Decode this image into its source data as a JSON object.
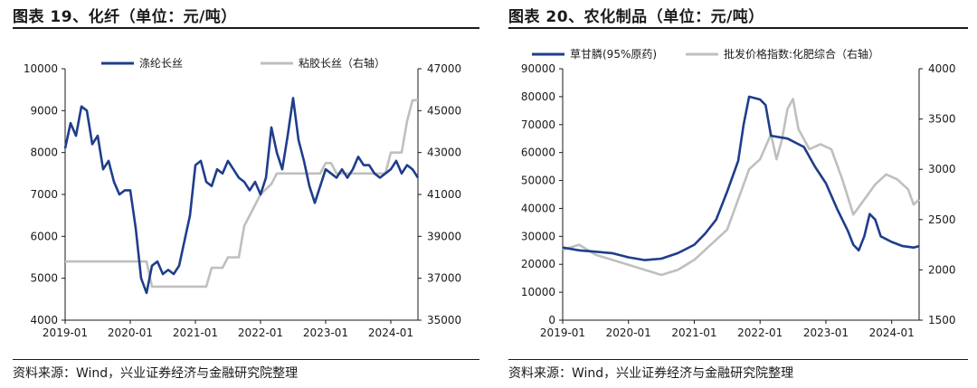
{
  "charts": {
    "left": {
      "figure_title": "图表 19、化纤（单位：元/吨）",
      "source": "资料来源：Wind，兴业证券经济与金融研究院整理"
    },
    "right": {
      "figure_title": "图表 20、农化制品（单位：元/吨）",
      "source": "资料来源：Wind，兴业证券经济与金融研究院整理"
    }
  },
  "chart_data": [
    {
      "type": "line",
      "title": "图表 19、化纤（单位：元/吨）",
      "x_ticks": [
        "2019-01",
        "2020-01",
        "2021-01",
        "2022-01",
        "2023-01",
        "2024-01"
      ],
      "x_range": [
        "2019-01",
        "2024-06"
      ],
      "y_left": {
        "range": [
          4000,
          10000
        ],
        "ticks": [
          4000,
          5000,
          6000,
          7000,
          8000,
          9000,
          10000
        ]
      },
      "y_right": {
        "range": [
          35000,
          47000
        ],
        "ticks": [
          35000,
          37000,
          39000,
          41000,
          43000,
          45000,
          47000
        ]
      },
      "legend_position": "top",
      "grid": false,
      "series": [
        {
          "name": "涤纶长丝",
          "axis": "left",
          "color": "#1f3d8c",
          "points": [
            [
              "2019-01",
              8100
            ],
            [
              "2019-02",
              8700
            ],
            [
              "2019-03",
              8400
            ],
            [
              "2019-04",
              9100
            ],
            [
              "2019-05",
              9000
            ],
            [
              "2019-06",
              8200
            ],
            [
              "2019-07",
              8400
            ],
            [
              "2019-08",
              7600
            ],
            [
              "2019-09",
              7800
            ],
            [
              "2019-10",
              7300
            ],
            [
              "2019-11",
              7000
            ],
            [
              "2019-12",
              7100
            ],
            [
              "2020-01",
              7100
            ],
            [
              "2020-02",
              6200
            ],
            [
              "2020-03",
              5000
            ],
            [
              "2020-04",
              4650
            ],
            [
              "2020-05",
              5300
            ],
            [
              "2020-06",
              5400
            ],
            [
              "2020-07",
              5100
            ],
            [
              "2020-08",
              5200
            ],
            [
              "2020-09",
              5100
            ],
            [
              "2020-10",
              5300
            ],
            [
              "2020-11",
              5900
            ],
            [
              "2020-12",
              6500
            ],
            [
              "2021-01",
              7700
            ],
            [
              "2021-02",
              7800
            ],
            [
              "2021-03",
              7300
            ],
            [
              "2021-04",
              7200
            ],
            [
              "2021-05",
              7600
            ],
            [
              "2021-06",
              7500
            ],
            [
              "2021-07",
              7800
            ],
            [
              "2021-08",
              7600
            ],
            [
              "2021-09",
              7400
            ],
            [
              "2021-10",
              7300
            ],
            [
              "2021-11",
              7100
            ],
            [
              "2021-12",
              7300
            ],
            [
              "2022-01",
              7000
            ],
            [
              "2022-02",
              7400
            ],
            [
              "2022-03",
              8600
            ],
            [
              "2022-04",
              8000
            ],
            [
              "2022-05",
              7600
            ],
            [
              "2022-06",
              8400
            ],
            [
              "2022-07",
              9300
            ],
            [
              "2022-08",
              8300
            ],
            [
              "2022-09",
              7800
            ],
            [
              "2022-10",
              7200
            ],
            [
              "2022-11",
              6800
            ],
            [
              "2022-12",
              7200
            ],
            [
              "2023-01",
              7600
            ],
            [
              "2023-02",
              7500
            ],
            [
              "2023-03",
              7400
            ],
            [
              "2023-04",
              7600
            ],
            [
              "2023-05",
              7400
            ],
            [
              "2023-06",
              7600
            ],
            [
              "2023-07",
              7900
            ],
            [
              "2023-08",
              7700
            ],
            [
              "2023-09",
              7700
            ],
            [
              "2023-10",
              7500
            ],
            [
              "2023-11",
              7400
            ],
            [
              "2023-12",
              7500
            ],
            [
              "2024-01",
              7600
            ],
            [
              "2024-02",
              7800
            ],
            [
              "2024-03",
              7500
            ],
            [
              "2024-04",
              7700
            ],
            [
              "2024-05",
              7600
            ],
            [
              "2024-06",
              7400
            ]
          ]
        },
        {
          "name": "粘胶长丝（右轴）",
          "axis": "right",
          "color": "#bfbfbf",
          "points": [
            [
              "2019-01",
              37800
            ],
            [
              "2020-04",
              37800
            ],
            [
              "2020-05",
              36600
            ],
            [
              "2021-03",
              36600
            ],
            [
              "2021-04",
              37500
            ],
            [
              "2021-06",
              37500
            ],
            [
              "2021-07",
              38000
            ],
            [
              "2021-09",
              38000
            ],
            [
              "2021-10",
              39500
            ],
            [
              "2021-12",
              40500
            ],
            [
              "2022-01",
              41000
            ],
            [
              "2022-03",
              41500
            ],
            [
              "2022-04",
              42000
            ],
            [
              "2022-06",
              42000
            ],
            [
              "2022-07",
              42000
            ],
            [
              "2022-12",
              42000
            ],
            [
              "2023-01",
              42500
            ],
            [
              "2023-02",
              42500
            ],
            [
              "2023-03",
              42000
            ],
            [
              "2023-09",
              42000
            ],
            [
              "2023-10",
              42000
            ],
            [
              "2023-12",
              42000
            ],
            [
              "2024-01",
              43000
            ],
            [
              "2024-03",
              43000
            ],
            [
              "2024-04",
              44500
            ],
            [
              "2024-05",
              45500
            ],
            [
              "2024-06",
              45500
            ]
          ]
        }
      ]
    },
    {
      "type": "line",
      "title": "图表 20、农化制品（单位：元/吨）",
      "x_ticks": [
        "2019-01",
        "2020-01",
        "2021-01",
        "2022-01",
        "2023-01",
        "2024-01"
      ],
      "x_range": [
        "2019-01",
        "2024-06"
      ],
      "y_left": {
        "range": [
          0,
          90000
        ],
        "ticks": [
          0,
          10000,
          20000,
          30000,
          40000,
          50000,
          60000,
          70000,
          80000,
          90000
        ]
      },
      "y_right": {
        "range": [
          1500,
          4000
        ],
        "ticks": [
          1500,
          2000,
          2500,
          3000,
          3500,
          4000
        ]
      },
      "legend_position": "top",
      "grid": false,
      "series": [
        {
          "name": "草甘膦(95%原药)",
          "axis": "left",
          "color": "#1f3d8c",
          "points": [
            [
              "2019-01",
              26000
            ],
            [
              "2019-04",
              25000
            ],
            [
              "2019-07",
              24500
            ],
            [
              "2019-10",
              24000
            ],
            [
              "2020-01",
              22500
            ],
            [
              "2020-04",
              21500
            ],
            [
              "2020-07",
              22000
            ],
            [
              "2020-10",
              24000
            ],
            [
              "2021-01",
              27000
            ],
            [
              "2021-03",
              31000
            ],
            [
              "2021-05",
              36000
            ],
            [
              "2021-07",
              46000
            ],
            [
              "2021-09",
              57000
            ],
            [
              "2021-10",
              70000
            ],
            [
              "2021-11",
              80000
            ],
            [
              "2022-01",
              79000
            ],
            [
              "2022-02",
              77000
            ],
            [
              "2022-03",
              66000
            ],
            [
              "2022-06",
              65000
            ],
            [
              "2022-09",
              62000
            ],
            [
              "2022-11",
              55000
            ],
            [
              "2023-01",
              49000
            ],
            [
              "2023-03",
              40000
            ],
            [
              "2023-05",
              32000
            ],
            [
              "2023-06",
              27000
            ],
            [
              "2023-07",
              25000
            ],
            [
              "2023-08",
              30000
            ],
            [
              "2023-09",
              38000
            ],
            [
              "2023-10",
              36000
            ],
            [
              "2023-11",
              30000
            ],
            [
              "2024-01",
              28000
            ],
            [
              "2024-03",
              26500
            ],
            [
              "2024-05",
              26000
            ],
            [
              "2024-06",
              26500
            ]
          ]
        },
        {
          "name": "批发价格指数:化肥综合（右轴）",
          "axis": "right",
          "color": "#bfbfbf",
          "points": [
            [
              "2019-01",
              2200
            ],
            [
              "2019-04",
              2250
            ],
            [
              "2019-07",
              2150
            ],
            [
              "2019-10",
              2100
            ],
            [
              "2020-01",
              2050
            ],
            [
              "2020-04",
              2000
            ],
            [
              "2020-07",
              1950
            ],
            [
              "2020-10",
              2000
            ],
            [
              "2021-01",
              2100
            ],
            [
              "2021-04",
              2250
            ],
            [
              "2021-07",
              2400
            ],
            [
              "2021-09",
              2700
            ],
            [
              "2021-11",
              3000
            ],
            [
              "2022-01",
              3100
            ],
            [
              "2022-03",
              3350
            ],
            [
              "2022-04",
              3100
            ],
            [
              "2022-05",
              3300
            ],
            [
              "2022-06",
              3600
            ],
            [
              "2022-07",
              3700
            ],
            [
              "2022-08",
              3400
            ],
            [
              "2022-10",
              3200
            ],
            [
              "2022-12",
              3250
            ],
            [
              "2023-02",
              3200
            ],
            [
              "2023-04",
              2900
            ],
            [
              "2023-06",
              2550
            ],
            [
              "2023-08",
              2700
            ],
            [
              "2023-10",
              2850
            ],
            [
              "2023-12",
              2950
            ],
            [
              "2024-02",
              2900
            ],
            [
              "2024-04",
              2800
            ],
            [
              "2024-05",
              2650
            ],
            [
              "2024-06",
              2700
            ]
          ]
        }
      ]
    }
  ]
}
